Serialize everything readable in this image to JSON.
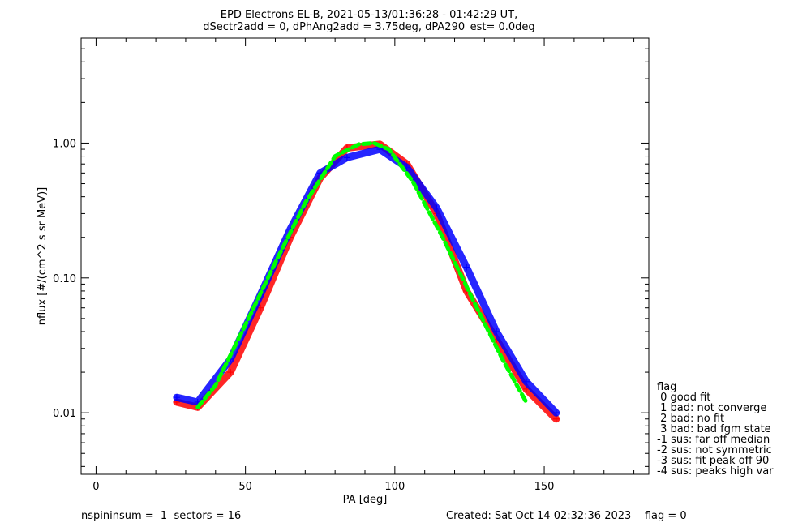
{
  "chart_data": {
    "type": "line",
    "title": "EPD Electrons EL-B, 2021-05-13/01:36:28 - 01:42:29 UT,",
    "subtitle": "dSectr2add = 0, dPhAng2add = 3.75deg, dPA290_est=   0.0deg",
    "xlabel": "PA [deg]",
    "ylabel": "nflux [#/(cm^2 s sr MeV)]",
    "xlim": [
      -5,
      185
    ],
    "ylim": [
      0.0035,
      6.0
    ],
    "yscale": "log",
    "xticks": [
      "0",
      "50",
      "100",
      "150"
    ],
    "xtick_values": [
      0,
      50,
      100,
      150
    ],
    "yticks": [
      "0.01",
      "0.10",
      "1.00"
    ],
    "ytick_values": [
      0.01,
      0.1,
      1.0
    ],
    "grid": false,
    "series": [
      {
        "color": "#ff0000",
        "x": [
          27,
          34,
          45,
          55,
          65,
          75,
          84,
          95,
          104,
          114,
          124,
          134,
          144,
          154
        ],
        "y": [
          0.012,
          0.011,
          0.02,
          0.06,
          0.2,
          0.55,
          0.92,
          0.98,
          0.7,
          0.3,
          0.08,
          0.035,
          0.015,
          0.009
        ]
      },
      {
        "color": "#0000ff",
        "x": [
          27,
          34,
          45,
          55,
          65,
          75,
          84,
          95,
          104,
          114,
          124,
          134,
          144,
          154
        ],
        "y": [
          0.013,
          0.012,
          0.025,
          0.075,
          0.23,
          0.6,
          0.78,
          0.9,
          0.66,
          0.33,
          0.12,
          0.04,
          0.017,
          0.01
        ]
      },
      {
        "color": "#00ff00",
        "dashed": true,
        "x": [
          34,
          40,
          50,
          60,
          70,
          80,
          88,
          93,
          98,
          106,
          116,
          126,
          136,
          144
        ],
        "y": [
          0.011,
          0.016,
          0.045,
          0.13,
          0.36,
          0.8,
          0.98,
          1.0,
          0.9,
          0.52,
          0.2,
          0.07,
          0.025,
          0.012
        ]
      }
    ],
    "legend": {
      "position": "right",
      "title": "flag",
      "entries": [
        " 0 good fit",
        " 1 bad: not converge",
        " 2 bad: no fit",
        " 3 bad: bad fgm state",
        "-1 sus: far off median",
        "-2 sus: not symmetric",
        "-3 sus: fit peak off 90",
        "-4 sus: peaks high var"
      ]
    }
  },
  "footer": {
    "left": "nspininsum =  1  sectors = 16",
    "right": "Created: Sat Oct 14 02:32:36 2023    flag = 0"
  }
}
